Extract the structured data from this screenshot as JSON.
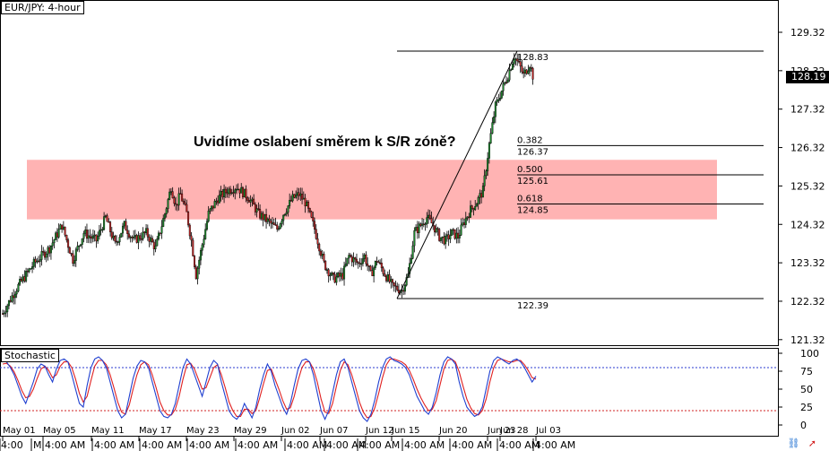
{
  "chart_title": "EUR/JPY: 4-hour",
  "indicator_title": "Stochastic",
  "annotation": "Uvidíme oslabení směrem k S/R zóně?",
  "current_price": "128.19",
  "fib_labels": [
    {
      "level": "0.382",
      "price": "126.37"
    },
    {
      "level": "0.500",
      "price": "125.61"
    },
    {
      "level": "0.618",
      "price": "124.85"
    }
  ],
  "swing_high_label": "128.83",
  "swing_low_label": "122.39",
  "date_labels": [
    "May 01",
    "May 05",
    "May 11",
    "May 17",
    "May 23",
    "May 29",
    "Jun 02",
    "Jun 07",
    "Jun 12",
    "Jun 15",
    "Jun 20",
    "Jun 23",
    "Jun 28",
    "Jul 03"
  ],
  "time_labels": [
    "4:00",
    "M",
    "4:00 AM",
    "4:00 AM",
    "4:00 AM",
    "4:00 AM",
    "4:00 AM",
    "4:00 AM",
    "4:00 AM",
    "4:00 AM",
    "4:00 AM",
    "4:00 AM",
    "4:00 AM",
    "4:00 AM"
  ],
  "icon_names": [
    "link-icon",
    "red-arrow-icon"
  ],
  "colors": {
    "zone": "#ffb3b3",
    "bull": "#1e8c2e",
    "bear": "#c62828",
    "stoch_main": "#1f3fd0",
    "stoch_signal": "#e02020",
    "level_80": "#2b3bd0",
    "level_20": "#d02020"
  },
  "chart_data": {
    "type": "candlestick",
    "symbol": "EUR/JPY",
    "timeframe": "4-hour",
    "y_ticks": [
      "129.32",
      "128.32",
      "127.32",
      "126.32",
      "125.32",
      "124.32",
      "123.32",
      "122.32",
      "121.32"
    ],
    "ylim": [
      121.32,
      129.82
    ],
    "sr_zone": [
      124.45,
      126.0
    ],
    "fib_retracement": {
      "high": 128.83,
      "low": 122.39,
      "levels": [
        0.382,
        0.5,
        0.618
      ],
      "prices": [
        126.37,
        125.61,
        124.85
      ]
    },
    "path": [
      [
        0,
        122.0
      ],
      [
        8,
        122.6
      ],
      [
        20,
        123.3
      ],
      [
        30,
        123.7
      ],
      [
        38,
        124.3
      ],
      [
        45,
        123.4
      ],
      [
        52,
        124.1
      ],
      [
        60,
        123.9
      ],
      [
        66,
        124.5
      ],
      [
        72,
        123.8
      ],
      [
        78,
        124.3
      ],
      [
        84,
        123.9
      ],
      [
        92,
        124.1
      ],
      [
        98,
        123.7
      ],
      [
        104,
        124.6
      ],
      [
        108,
        125.3
      ],
      [
        111,
        124.8
      ],
      [
        114,
        125.1
      ],
      [
        118,
        124.6
      ],
      [
        121,
        123.9
      ],
      [
        124,
        123.0
      ],
      [
        127,
        123.6
      ],
      [
        132,
        124.6
      ],
      [
        138,
        125.0
      ],
      [
        144,
        125.2
      ],
      [
        150,
        125.3
      ],
      [
        158,
        125.0
      ],
      [
        164,
        124.6
      ],
      [
        170,
        124.4
      ],
      [
        176,
        124.2
      ],
      [
        180,
        124.6
      ],
      [
        186,
        125.0
      ],
      [
        190,
        125.1
      ],
      [
        194,
        124.9
      ],
      [
        200,
        124.2
      ],
      [
        206,
        123.3
      ],
      [
        212,
        122.9
      ],
      [
        218,
        123.0
      ],
      [
        222,
        123.5
      ],
      [
        228,
        123.3
      ],
      [
        232,
        123.5
      ],
      [
        236,
        123.0
      ],
      [
        240,
        123.4
      ],
      [
        244,
        123.1
      ],
      [
        250,
        122.7
      ],
      [
        256,
        122.6
      ],
      [
        260,
        123.0
      ],
      [
        264,
        124.1
      ],
      [
        268,
        124.3
      ],
      [
        272,
        124.5
      ],
      [
        276,
        124.3
      ],
      [
        280,
        124.0
      ],
      [
        284,
        123.9
      ],
      [
        288,
        124.1
      ],
      [
        292,
        124.0
      ],
      [
        296,
        124.4
      ],
      [
        300,
        124.7
      ],
      [
        304,
        124.9
      ],
      [
        308,
        125.2
      ],
      [
        312,
        126.4
      ],
      [
        316,
        127.4
      ],
      [
        320,
        127.8
      ],
      [
        324,
        128.2
      ],
      [
        328,
        128.7
      ],
      [
        332,
        128.4
      ],
      [
        334,
        128.2
      ],
      [
        338,
        128.5
      ],
      [
        340,
        128.19
      ]
    ],
    "stochastic": {
      "levels": [
        80,
        20
      ],
      "yticks": [
        "100",
        "75",
        "50",
        "25",
        "0"
      ],
      "main": [
        90,
        88,
        80,
        70,
        55,
        40,
        30,
        45,
        60,
        78,
        85,
        82,
        70,
        60,
        78,
        90,
        92,
        88,
        70,
        50,
        30,
        25,
        55,
        80,
        92,
        95,
        90,
        80,
        60,
        40,
        20,
        10,
        15,
        40,
        65,
        82,
        90,
        88,
        80,
        60,
        40,
        20,
        12,
        10,
        15,
        30,
        55,
        80,
        92,
        85,
        70,
        55,
        40,
        60,
        80,
        90,
        85,
        60,
        40,
        20,
        12,
        8,
        15,
        30,
        20,
        10,
        25,
        50,
        70,
        85,
        75,
        55,
        40,
        25,
        15,
        30,
        55,
        78,
        90,
        92,
        88,
        70,
        45,
        20,
        8,
        20,
        45,
        70,
        88,
        92,
        80,
        60,
        40,
        20,
        10,
        5,
        15,
        35,
        60,
        80,
        92,
        95,
        90,
        88,
        85,
        80,
        70,
        55,
        40,
        30,
        20,
        15,
        25,
        45,
        70,
        88,
        95,
        92,
        85,
        60,
        40,
        25,
        18,
        12,
        15,
        25,
        50,
        75,
        90,
        95,
        92,
        88,
        85,
        90,
        92,
        88,
        80,
        70,
        60,
        68
      ],
      "signal": [
        85,
        86,
        82,
        74,
        62,
        48,
        38,
        40,
        50,
        65,
        78,
        82,
        76,
        66,
        70,
        82,
        88,
        88,
        80,
        64,
        44,
        32,
        40,
        62,
        82,
        90,
        90,
        84,
        70,
        52,
        32,
        18,
        15,
        28,
        50,
        70,
        84,
        88,
        84,
        70,
        52,
        32,
        20,
        14,
        14,
        22,
        40,
        64,
        84,
        86,
        78,
        64,
        50,
        52,
        66,
        80,
        84,
        70,
        52,
        32,
        20,
        12,
        12,
        22,
        22,
        16,
        20,
        38,
        58,
        76,
        78,
        64,
        50,
        34,
        22,
        24,
        40,
        62,
        80,
        88,
        88,
        78,
        60,
        36,
        18,
        16,
        30,
        54,
        76,
        88,
        84,
        70,
        52,
        32,
        18,
        10,
        12,
        24,
        44,
        66,
        84,
        92,
        92,
        90,
        88,
        84,
        76,
        64,
        50,
        38,
        28,
        20,
        22,
        34,
        56,
        78,
        90,
        92,
        88,
        74,
        54,
        36,
        24,
        16,
        14,
        20,
        36,
        60,
        80,
        90,
        92,
        90,
        88,
        88,
        90,
        90,
        84,
        76,
        66,
        64
      ]
    }
  }
}
